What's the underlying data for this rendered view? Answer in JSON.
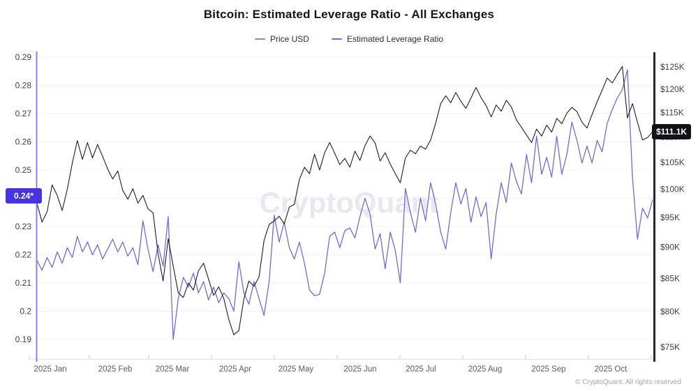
{
  "title": "Bitcoin: Estimated Leverage Ratio - All Exchanges",
  "watermark": "CryptoQuant",
  "footer": "© CryptoQuant. All rights reserved",
  "chart_data": {
    "type": "line",
    "title": "Bitcoin: Estimated Leverage Ratio - All Exchanges",
    "x_categories": [
      "2025 Jan",
      "2025 Feb",
      "2025 Mar",
      "2025 Apr",
      "2025 May",
      "2025 Jun",
      "2025 Jul",
      "2025 Aug",
      "2025 Sep",
      "2025 Oct"
    ],
    "grid": "horizontal",
    "legend_position": "top-center",
    "axes": {
      "left": {
        "title": "Estimated Leverage Ratio",
        "scale": "linear",
        "range": [
          0.19,
          0.29
        ],
        "ticks": [
          {
            "label": "0.29",
            "value": 0.29
          },
          {
            "label": "0.28",
            "value": 0.28
          },
          {
            "label": "0.27",
            "value": 0.27
          },
          {
            "label": "0.26",
            "value": 0.26
          },
          {
            "label": "0.25",
            "value": 0.25
          },
          {
            "label": "0.24",
            "value": 0.24
          },
          {
            "label": "0.23",
            "value": 0.23
          },
          {
            "label": "0.22",
            "value": 0.22
          },
          {
            "label": "0.21",
            "value": 0.21
          },
          {
            "label": "0.2",
            "value": 0.2
          },
          {
            "label": "0.19",
            "value": 0.19
          }
        ]
      },
      "right": {
        "title": "Price USD",
        "scale": "log",
        "range_thousand_usd": [
          75,
          125
        ],
        "ticks": [
          {
            "label": "$125K",
            "value": 125
          },
          {
            "label": "$120K",
            "value": 120
          },
          {
            "label": "$115K",
            "value": 115
          },
          {
            "label": "$110K",
            "value": 110
          },
          {
            "label": "$105K",
            "value": 105
          },
          {
            "label": "$100K",
            "value": 100
          },
          {
            "label": "$95K",
            "value": 95
          },
          {
            "label": "$90K",
            "value": 90
          },
          {
            "label": "$85K",
            "value": 85
          },
          {
            "label": "$80K",
            "value": 80
          },
          {
            "label": "$75K",
            "value": 75
          }
        ]
      }
    },
    "series": [
      {
        "name": "Price USD",
        "axis": "right",
        "color": "#1b1d21",
        "legend_swatch_color": "#8a8d92",
        "unit": "thousand USD",
        "values": [
          97.5,
          94.2,
          96.0,
          100.8,
          98.9,
          96.2,
          100.0,
          104.9,
          109.3,
          105.6,
          108.9,
          105.9,
          108.5,
          106.2,
          103.8,
          101.9,
          103.4,
          99.8,
          98.2,
          100.1,
          97.5,
          98.9,
          96.5,
          95.8,
          88.9,
          84.6,
          91.4,
          86.9,
          82.8,
          82.1,
          84.3,
          83.2,
          86.2,
          87.4,
          84.9,
          82.4,
          83.7,
          82.0,
          78.9,
          76.7,
          77.3,
          81.9,
          84.6,
          83.8,
          85.2,
          91.1,
          93.8,
          94.4,
          95.2,
          93.9,
          96.8,
          97.3,
          101.8,
          104.1,
          102.9,
          106.6,
          103.6,
          106.9,
          108.9,
          106.8,
          104.6,
          105.8,
          104.1,
          107.2,
          105.4,
          108.3,
          110.2,
          108.8,
          105.3,
          106.9,
          104.7,
          102.9,
          101.2,
          105.9,
          107.4,
          106.7,
          108.2,
          107.6,
          109.4,
          112.8,
          116.9,
          118.6,
          117.1,
          119.3,
          117.4,
          115.9,
          118.1,
          120.4,
          118.2,
          116.5,
          114.1,
          116.6,
          115.3,
          117.6,
          116.2,
          113.5,
          112.0,
          110.4,
          108.9,
          111.6,
          110.2,
          112.4,
          111.0,
          113.8,
          112.7,
          114.9,
          116.1,
          115.2,
          113.0,
          111.8,
          114.6,
          117.3,
          119.8,
          122.5,
          121.4,
          123.3,
          125.1,
          113.9,
          116.9,
          113.0,
          109.4,
          109.9,
          111.1
        ]
      },
      {
        "name": "Estimated Leverage Ratio",
        "axis": "left",
        "color": "#7268e0",
        "legend_swatch_color": "#7268e0",
        "unit": "ratio",
        "values": [
          0.218,
          0.2145,
          0.219,
          0.2155,
          0.221,
          0.217,
          0.2225,
          0.219,
          0.2265,
          0.221,
          0.2245,
          0.22,
          0.2235,
          0.2185,
          0.222,
          0.2255,
          0.221,
          0.2245,
          0.2195,
          0.2225,
          0.2165,
          0.232,
          0.222,
          0.214,
          0.2235,
          0.216,
          0.2335,
          0.19,
          0.2045,
          0.212,
          0.2085,
          0.2135,
          0.2065,
          0.2105,
          0.204,
          0.2085,
          0.203,
          0.2065,
          0.2045,
          0.2,
          0.2175,
          0.2065,
          0.2025,
          0.2105,
          0.2045,
          0.1985,
          0.2105,
          0.234,
          0.2245,
          0.2315,
          0.2225,
          0.2185,
          0.2245,
          0.217,
          0.2075,
          0.2055,
          0.206,
          0.2135,
          0.2265,
          0.228,
          0.2225,
          0.2285,
          0.2295,
          0.226,
          0.2335,
          0.24,
          0.2345,
          0.222,
          0.2275,
          0.215,
          0.228,
          0.2215,
          0.21,
          0.2435,
          0.235,
          0.228,
          0.24,
          0.232,
          0.2455,
          0.238,
          0.228,
          0.222,
          0.235,
          0.2455,
          0.238,
          0.2435,
          0.2315,
          0.2405,
          0.2335,
          0.2385,
          0.2185,
          0.2345,
          0.2455,
          0.2385,
          0.2525,
          0.246,
          0.2415,
          0.2555,
          0.2455,
          0.262,
          0.2485,
          0.2545,
          0.2475,
          0.262,
          0.2485,
          0.2555,
          0.267,
          0.2605,
          0.2525,
          0.2585,
          0.2525,
          0.2605,
          0.2565,
          0.2665,
          0.2715,
          0.2755,
          0.2785,
          0.2855,
          0.2475,
          0.2255,
          0.2365,
          0.233,
          0.2395
        ]
      }
    ],
    "last_value_badges": {
      "price": {
        "text": "$111.1K",
        "value": 111.1,
        "bg": "#101216"
      },
      "leverage": {
        "text": "0.24*",
        "value": 0.2395,
        "bg": "#4534df"
      }
    }
  }
}
